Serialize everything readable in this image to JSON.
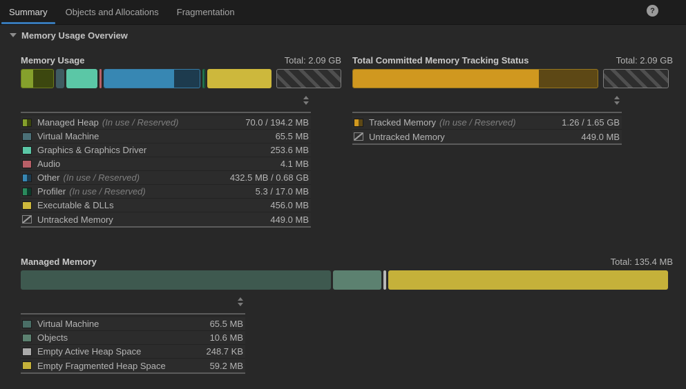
{
  "colors": {
    "accent_blue": "#3779b8",
    "background": "#282828",
    "tabbar_bg": "#1d1d1d"
  },
  "tab_bar": {
    "tabs": [
      {
        "label": "Summary",
        "active": true
      },
      {
        "label": "Objects and Allocations",
        "active": false
      },
      {
        "label": "Fragmentation",
        "active": false
      }
    ],
    "help_icon": "?"
  },
  "overview": {
    "title": "Memory Usage Overview"
  },
  "memory_usage": {
    "title": "Memory Usage",
    "total_label": "Total: 2.09 GB",
    "bar": [
      {
        "name": "managed-heap",
        "type": "split",
        "width_pct": 10.3,
        "inuse_pct": 37,
        "color_inuse": "#85a02c",
        "color_reserved": "#3c470f",
        "border": "#6b7a1e",
        "value": "70.0 / 194.2 MB"
      },
      {
        "name": "virtual-machine",
        "type": "solid",
        "width_pct": 2.6,
        "color": "#3f5b61",
        "value": "65.5 MB"
      },
      {
        "name": "graphics-and-graphics-driver",
        "type": "solid",
        "width_pct": 9.7,
        "color": "#5bc7a6",
        "value": "253.6 MB"
      },
      {
        "name": "audio",
        "type": "solid",
        "width_pct": 0.7,
        "color": "#b85f67",
        "value": "4.1 MB"
      },
      {
        "name": "other",
        "type": "split",
        "width_pct": 30.3,
        "inuse_pct": 73,
        "color_inuse": "#3787b3",
        "color_reserved": "#1d3b4e",
        "border": "#377ca6",
        "value": "432.5 MB / 0.68 GB"
      },
      {
        "name": "profiler",
        "type": "split",
        "width_pct": 0.8,
        "inuse_pct": 40,
        "color_inuse": "#2a8a5c",
        "color_reserved": "#0e3b2b",
        "border": "#1d6746",
        "value": "5.3 / 17.0 MB"
      },
      {
        "name": "executable-and-dlls",
        "type": "solid",
        "width_pct": 20.0,
        "color": "#cdb83c",
        "value": "456.0 MB"
      },
      {
        "name": "untracked-memory",
        "type": "hatched",
        "width_pct": 20.3,
        "gap_before": true,
        "value": "449.0 MB"
      }
    ],
    "legend": [
      {
        "label": "Managed Heap",
        "note": "(In use / Reserved)",
        "value": "70.0 / 194.2 MB",
        "swatch": {
          "type": "split",
          "left": "#85a02c",
          "right": "#3c470f"
        }
      },
      {
        "label": "Virtual Machine",
        "note": "",
        "value": "65.5 MB",
        "swatch": {
          "type": "solid",
          "color": "#4b7077"
        }
      },
      {
        "label": "Graphics & Graphics Driver",
        "note": "",
        "value": "253.6 MB",
        "swatch": {
          "type": "solid",
          "color": "#5bc7a6"
        }
      },
      {
        "label": "Audio",
        "note": "",
        "value": "4.1 MB",
        "swatch": {
          "type": "solid",
          "color": "#b85f67"
        }
      },
      {
        "label": "Other",
        "note": "(In use / Reserved)",
        "value": "432.5 MB / 0.68 GB",
        "swatch": {
          "type": "split",
          "left": "#3787b3",
          "right": "#1d3b4e"
        }
      },
      {
        "label": "Profiler",
        "note": "(In use / Reserved)",
        "value": "5.3 / 17.0 MB",
        "swatch": {
          "type": "split",
          "left": "#2a8a5c",
          "right": "#0e3b2b"
        }
      },
      {
        "label": "Executable & DLLs",
        "note": "",
        "value": "456.0 MB",
        "swatch": {
          "type": "solid",
          "color": "#cdb83c"
        }
      },
      {
        "label": "Untracked Memory",
        "note": "",
        "value": "449.0 MB",
        "swatch": {
          "type": "hatched"
        }
      }
    ]
  },
  "tracking_status": {
    "title": "Total Committed Memory Tracking Status",
    "total_label": "Total: 2.09 GB",
    "bar": [
      {
        "name": "tracked-memory",
        "type": "split",
        "width_pct": 76.8,
        "inuse_pct": 76,
        "color_inuse": "#d0981f",
        "color_reserved": "#5d4815",
        "border": "#96761f",
        "value": "1.26 / 1.65 GB"
      },
      {
        "name": "untracked-memory",
        "type": "hatched",
        "width_pct": 20.3,
        "gap_before": true,
        "value": "449.0 MB"
      }
    ],
    "legend": [
      {
        "label": "Tracked Memory",
        "note": "(In use / Reserved)",
        "value": "1.26 / 1.65 GB",
        "swatch": {
          "type": "split",
          "left": "#d0981f",
          "right": "#5d4815"
        }
      },
      {
        "label": "Untracked Memory",
        "note": "",
        "value": "449.0 MB",
        "swatch": {
          "type": "hatched"
        }
      }
    ]
  },
  "managed_memory": {
    "title": "Managed Memory",
    "total_label": "Total: 135.4 MB",
    "bar": [
      {
        "name": "virtual-machine",
        "type": "solid",
        "width_pct": 47.6,
        "color": "#3e594f",
        "value": "65.5 MB"
      },
      {
        "name": "objects",
        "type": "solid",
        "width_pct": 7.4,
        "color": "#5c8170",
        "value": "10.6 MB"
      },
      {
        "name": "empty-active-heap-space",
        "type": "solid",
        "width_pct": 0.4,
        "color": "#b7b7b7",
        "value": "248.7 KB"
      },
      {
        "name": "empty-fragmented-heap-space",
        "type": "solid",
        "width_pct": 42.9,
        "color": "#c5b13a",
        "value": "59.2 MB"
      }
    ],
    "legend": [
      {
        "label": "Virtual Machine",
        "note": "",
        "value": "65.5 MB",
        "swatch": {
          "type": "solid",
          "color": "#4a6e66"
        }
      },
      {
        "label": "Objects",
        "note": "",
        "value": "10.6 MB",
        "swatch": {
          "type": "solid",
          "color": "#5c8170"
        }
      },
      {
        "label": "Empty Active Heap Space",
        "note": "",
        "value": "248.7 KB",
        "swatch": {
          "type": "solid",
          "color": "#ababab"
        }
      },
      {
        "label": "Empty Fragmented Heap Space",
        "note": "",
        "value": "59.2 MB",
        "swatch": {
          "type": "solid",
          "color": "#c5b13a"
        }
      }
    ]
  }
}
